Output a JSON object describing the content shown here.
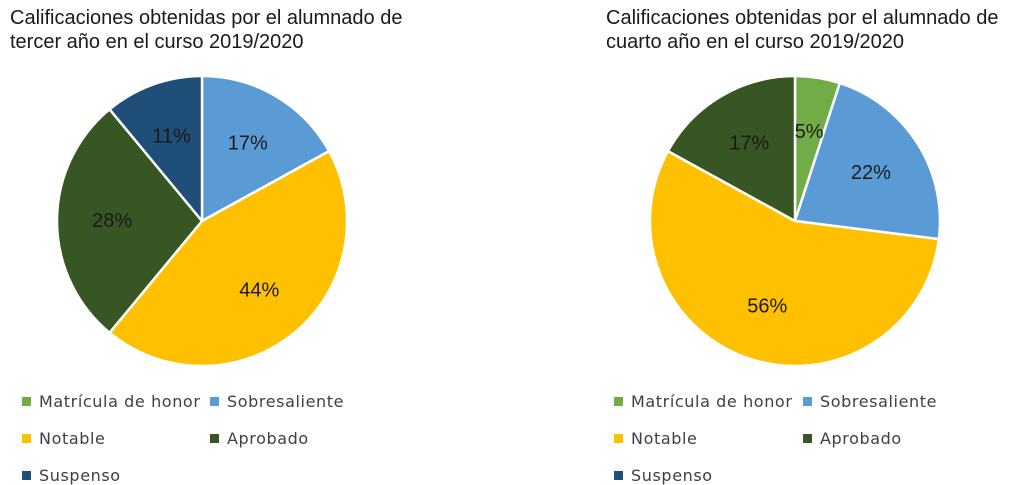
{
  "chart_data": [
    {
      "type": "pie",
      "title": "Calificaciones obtenidas por el alumnado de tercer año en el curso 2019/2020",
      "title_lines": [
        "Calificaciones obtenidas por el alumnado de",
        "tercer año en el curso 2019/2020"
      ],
      "categories": [
        "Matrícula de honor",
        "Sobresaliente",
        "Notable",
        "Aprobado",
        "Suspenso"
      ],
      "values": [
        0,
        17,
        44,
        28,
        11
      ],
      "labels": [
        "",
        "17%",
        "44%",
        "28%",
        "11%"
      ],
      "legend_position": "bottom"
    },
    {
      "type": "pie",
      "title": "Calificaciones obtenidas por el alumnado de cuarto año en el curso 2019/2020",
      "title_lines": [
        "Calificaciones obtenidas por el alumnado de",
        "cuarto año en el curso 2019/2020"
      ],
      "categories": [
        "Matrícula de honor",
        "Sobresaliente",
        "Notable",
        "Aprobado",
        "Suspenso"
      ],
      "values": [
        5,
        22,
        56,
        17,
        0
      ],
      "labels": [
        "5%",
        "22%",
        "56%",
        "17%",
        ""
      ],
      "legend_position": "bottom"
    }
  ],
  "colors": {
    "Matrícula de honor": "#70ad47",
    "Sobresaliente": "#5b9bd5",
    "Notable": "#ffc000",
    "Aprobado": "#375623",
    "Suspenso": "#1f4e79"
  }
}
